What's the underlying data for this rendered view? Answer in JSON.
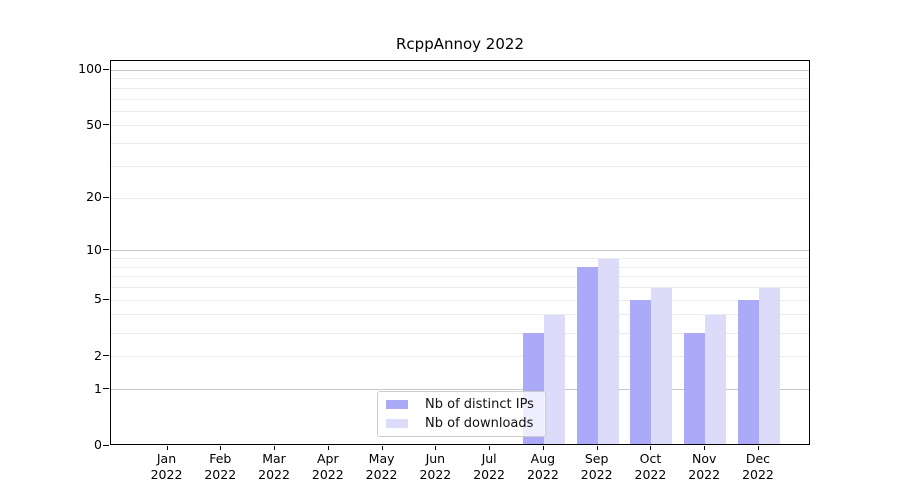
{
  "figure": {
    "background": "#ffffff",
    "axis_color": "#000000",
    "text_color": "#000000"
  },
  "chart_data": {
    "type": "bar",
    "title": "RcppAnnoy 2022",
    "xlabel": "",
    "ylabel": "",
    "yscale": "log1p",
    "ylim": [
      0,
      113
    ],
    "categories": [
      "Jan",
      "Feb",
      "Mar",
      "Apr",
      "May",
      "Jun",
      "Jul",
      "Aug",
      "Sep",
      "Oct",
      "Nov",
      "Dec"
    ],
    "year_label": "2022",
    "series": [
      {
        "key": "distinct-ips",
        "name": "Nb of distinct IPs",
        "color": "#abaaf8",
        "values": [
          0,
          0,
          0,
          0,
          0,
          0,
          0,
          3,
          8,
          5,
          3,
          5
        ]
      },
      {
        "key": "downloads",
        "name": "Nb of downloads",
        "color": "#dcdcfa",
        "values": [
          0,
          0,
          0,
          0,
          0,
          0,
          0,
          4,
          9,
          6,
          4,
          6
        ]
      }
    ],
    "y_ticks": [
      100,
      50,
      20,
      10,
      5,
      2,
      1,
      0
    ],
    "grid": {
      "major": [
        1,
        10,
        100
      ],
      "minor": [
        2,
        3,
        4,
        5,
        6,
        7,
        8,
        9,
        20,
        30,
        40,
        50,
        60,
        70,
        80,
        90
      ],
      "major_color": "#c6c6c6",
      "minor_color": "#ebebeb"
    },
    "legend": {
      "position": "lower-center-inside",
      "border_color": "#cccccc"
    }
  }
}
